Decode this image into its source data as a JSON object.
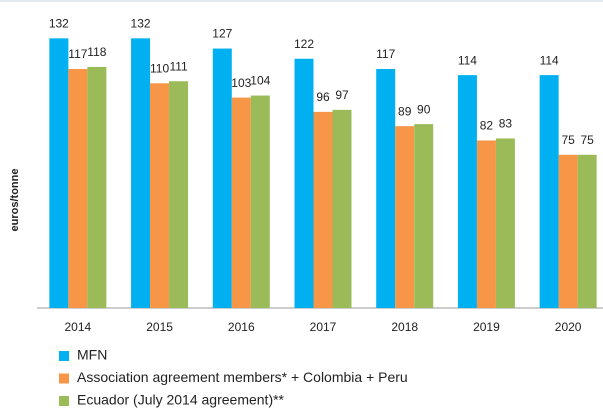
{
  "chart_data": {
    "type": "bar",
    "y_label": "euros/tonne",
    "categories": [
      "2014",
      "2015",
      "2016",
      "2017",
      "2018",
      "2019",
      "2020"
    ],
    "series": [
      {
        "name": "MFN",
        "color": "#00b0f0",
        "values": [
          132,
          132,
          127,
          122,
          117,
          114,
          114
        ]
      },
      {
        "name": "Association agreement members* + Colombia + Peru",
        "color": "#f79646",
        "values": [
          117,
          110,
          103,
          96,
          89,
          82,
          75
        ]
      },
      {
        "name": "Ecuador (July 2014 agreement)**",
        "color": "#9bbb59",
        "values": [
          118,
          111,
          104,
          97,
          90,
          83,
          75
        ]
      }
    ],
    "ylim": [
      0,
      140
    ],
    "yticks": [],
    "grid": false,
    "data_labels": true,
    "legend": "bottom"
  }
}
